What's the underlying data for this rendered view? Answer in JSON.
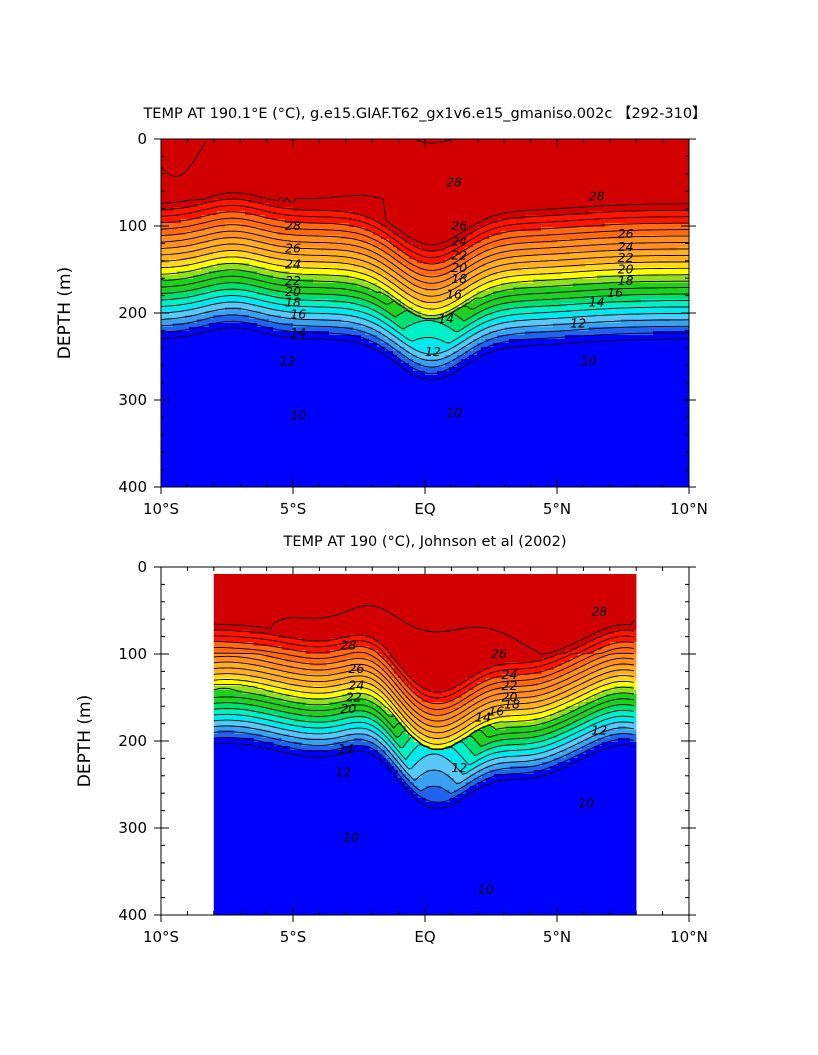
{
  "chart_data": [
    {
      "type": "contour",
      "title": "TEMP AT 190.1°E (°C), g.e15.GIAF.T62_gx1v6.e15_gmaniso.002c 【292-310】",
      "ylabel": "DEPTH (m)",
      "xlabel": "",
      "x_range": [
        -10,
        10
      ],
      "y_range": [
        0,
        400
      ],
      "y_inverted": true,
      "x_ticks": [
        -10,
        -5,
        0,
        5,
        10
      ],
      "x_tick_labels": [
        "10°S",
        "5°S",
        "EQ",
        "5°N",
        "10°N"
      ],
      "y_ticks": [
        0,
        100,
        200,
        300,
        400
      ],
      "y_tick_labels": [
        "0",
        "100",
        "200",
        "300",
        "400"
      ],
      "data_extent": [
        -10,
        10
      ],
      "contour_interval": 1,
      "levels_min": 7,
      "levels_max": 30,
      "colors": [
        "#0000ff",
        "#1e64f0",
        "#3aa0f0",
        "#58c8f8",
        "#00e8f0",
        "#00f0c8",
        "#00e070",
        "#20d020",
        "#90e020",
        "#ffff00",
        "#ffd820",
        "#ffb020",
        "#ff9020",
        "#ff6a10",
        "#ff1400",
        "#d20000"
      ],
      "color_edges": [
        9,
        10,
        11,
        12,
        13,
        14,
        15,
        17,
        18,
        19,
        20,
        22,
        24,
        26,
        28,
        29
      ],
      "contour_labels": [
        {
          "text": "28",
          "x": 1.1,
          "y": 50
        },
        {
          "text": "28",
          "x": 6.5,
          "y": 66
        },
        {
          "text": "28",
          "x": -5,
          "y": 100
        },
        {
          "text": "26",
          "x": 1.3,
          "y": 100
        },
        {
          "text": "26",
          "x": 7.6,
          "y": 109
        },
        {
          "text": "26",
          "x": -5,
          "y": 126
        },
        {
          "text": "24",
          "x": 1.3,
          "y": 118
        },
        {
          "text": "24",
          "x": 7.6,
          "y": 124
        },
        {
          "text": "24",
          "x": -5,
          "y": 144
        },
        {
          "text": "22",
          "x": 1.3,
          "y": 134
        },
        {
          "text": "22",
          "x": 7.6,
          "y": 137
        },
        {
          "text": "22",
          "x": -5,
          "y": 163
        },
        {
          "text": "20",
          "x": 1.3,
          "y": 148
        },
        {
          "text": "20",
          "x": 7.6,
          "y": 150
        },
        {
          "text": "20",
          "x": -5,
          "y": 176
        },
        {
          "text": "18",
          "x": 1.3,
          "y": 161
        },
        {
          "text": "18",
          "x": 7.6,
          "y": 163
        },
        {
          "text": "18",
          "x": -5,
          "y": 188
        },
        {
          "text": "16",
          "x": 1.1,
          "y": 179
        },
        {
          "text": "16",
          "x": 7.2,
          "y": 177
        },
        {
          "text": "16",
          "x": -4.8,
          "y": 202
        },
        {
          "text": "14",
          "x": 0.8,
          "y": 207
        },
        {
          "text": "14",
          "x": 6.5,
          "y": 188
        },
        {
          "text": "14",
          "x": -4.8,
          "y": 223
        },
        {
          "text": "12",
          "x": 0.3,
          "y": 245
        },
        {
          "text": "12",
          "x": 5.8,
          "y": 212
        },
        {
          "text": "12",
          "x": -5.2,
          "y": 256
        },
        {
          "text": "10",
          "x": 6.2,
          "y": 256
        },
        {
          "text": "10",
          "x": 1.1,
          "y": 315
        },
        {
          "text": "10",
          "x": -4.8,
          "y": 318
        }
      ]
    },
    {
      "type": "contour",
      "title": "TEMP AT 190 (°C), Johnson et al (2002)",
      "ylabel": "DEPTH (m)",
      "xlabel": "",
      "x_range": [
        -10,
        10
      ],
      "y_range": [
        0,
        400
      ],
      "y_inverted": true,
      "x_ticks": [
        -10,
        -5,
        0,
        5,
        10
      ],
      "x_tick_labels": [
        "10°S",
        "5°S",
        "EQ",
        "5°N",
        "10°N"
      ],
      "y_ticks": [
        0,
        100,
        200,
        300,
        400
      ],
      "y_tick_labels": [
        "0",
        "100",
        "200",
        "300",
        "400"
      ],
      "data_extent": [
        -8,
        8
      ],
      "contour_interval": 1,
      "levels_min": 7,
      "levels_max": 30,
      "colors": [
        "#0000ff",
        "#1e64f0",
        "#3aa0f0",
        "#58c8f8",
        "#00e8f0",
        "#00f0c8",
        "#00e070",
        "#20d020",
        "#90e020",
        "#ffff00",
        "#ffd820",
        "#ffb020",
        "#ff9020",
        "#ff6a10",
        "#ff1400",
        "#d20000"
      ],
      "color_edges": [
        9,
        10,
        11,
        12,
        13,
        14,
        15,
        17,
        18,
        19,
        20,
        22,
        24,
        26,
        28,
        29
      ],
      "contour_labels": [
        {
          "text": "28",
          "x": -2.9,
          "y": 90
        },
        {
          "text": "28",
          "x": 6.6,
          "y": 52
        },
        {
          "text": "26",
          "x": -2.6,
          "y": 117
        },
        {
          "text": "26",
          "x": 2.8,
          "y": 100
        },
        {
          "text": "24",
          "x": -2.6,
          "y": 136
        },
        {
          "text": "24",
          "x": 3.2,
          "y": 124
        },
        {
          "text": "22",
          "x": -2.7,
          "y": 150
        },
        {
          "text": "22",
          "x": 3.2,
          "y": 137
        },
        {
          "text": "20",
          "x": -2.9,
          "y": 163
        },
        {
          "text": "20",
          "x": 3.2,
          "y": 150
        },
        {
          "text": "16",
          "x": 2.7,
          "y": 166
        },
        {
          "text": "18",
          "x": 3.3,
          "y": 158
        },
        {
          "text": "14",
          "x": 2.2,
          "y": 173
        },
        {
          "text": "14",
          "x": -3,
          "y": 209
        },
        {
          "text": "12",
          "x": -3.1,
          "y": 236
        },
        {
          "text": "12",
          "x": 1.3,
          "y": 231
        },
        {
          "text": "12",
          "x": 6.6,
          "y": 188
        },
        {
          "text": "10",
          "x": 6.1,
          "y": 272
        },
        {
          "text": "10",
          "x": -2.8,
          "y": 311
        },
        {
          "text": "10",
          "x": 2.3,
          "y": 371
        }
      ]
    }
  ]
}
